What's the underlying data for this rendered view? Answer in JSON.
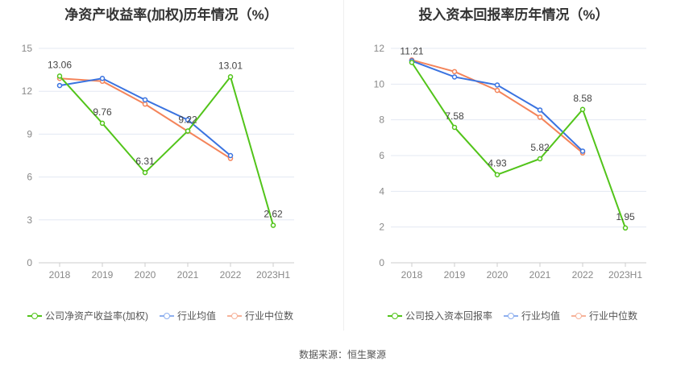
{
  "chart_data": [
    {
      "type": "line",
      "title": "净资产收益率(加权)历年情况（%）",
      "categories": [
        "2018",
        "2019",
        "2020",
        "2021",
        "2022",
        "2023H1"
      ],
      "ylim": [
        0,
        15
      ],
      "yticks": [
        0,
        3,
        6,
        9,
        12,
        15
      ],
      "series": [
        {
          "name": "公司净资产收益率(加权)",
          "color": "#52c41a",
          "values": [
            13.06,
            9.76,
            6.31,
            9.22,
            13.01,
            2.62
          ],
          "labels": [
            "13.06",
            "9.76",
            "6.31",
            "9.22",
            "13.01",
            "2.62"
          ]
        },
        {
          "name": "行业均值",
          "color": "#3a73e0",
          "values": [
            12.4,
            12.9,
            11.4,
            10.0,
            7.5,
            null
          ]
        },
        {
          "name": "行业中位数",
          "color": "#f4845a",
          "values": [
            12.9,
            12.7,
            11.1,
            9.2,
            7.3,
            null
          ]
        }
      ]
    },
    {
      "type": "line",
      "title": "投入资本回报率历年情况（%）",
      "categories": [
        "2018",
        "2019",
        "2020",
        "2021",
        "2022",
        "2023H1"
      ],
      "ylim": [
        0,
        12
      ],
      "yticks": [
        0,
        2,
        4,
        6,
        8,
        10,
        12
      ],
      "series": [
        {
          "name": "公司投入资本回报率",
          "color": "#52c41a",
          "values": [
            11.21,
            7.58,
            4.93,
            5.82,
            8.58,
            1.95
          ],
          "labels": [
            "11.21",
            "7.58",
            "4.93",
            "5.82",
            "8.58",
            "1.95"
          ]
        },
        {
          "name": "行业均值",
          "color": "#3a73e0",
          "values": [
            11.3,
            10.4,
            9.95,
            8.55,
            6.25,
            null
          ]
        },
        {
          "name": "行业中位数",
          "color": "#f4845a",
          "values": [
            11.35,
            10.7,
            9.65,
            8.15,
            6.15,
            null
          ]
        }
      ]
    }
  ],
  "source": "数据来源：恒生聚源"
}
